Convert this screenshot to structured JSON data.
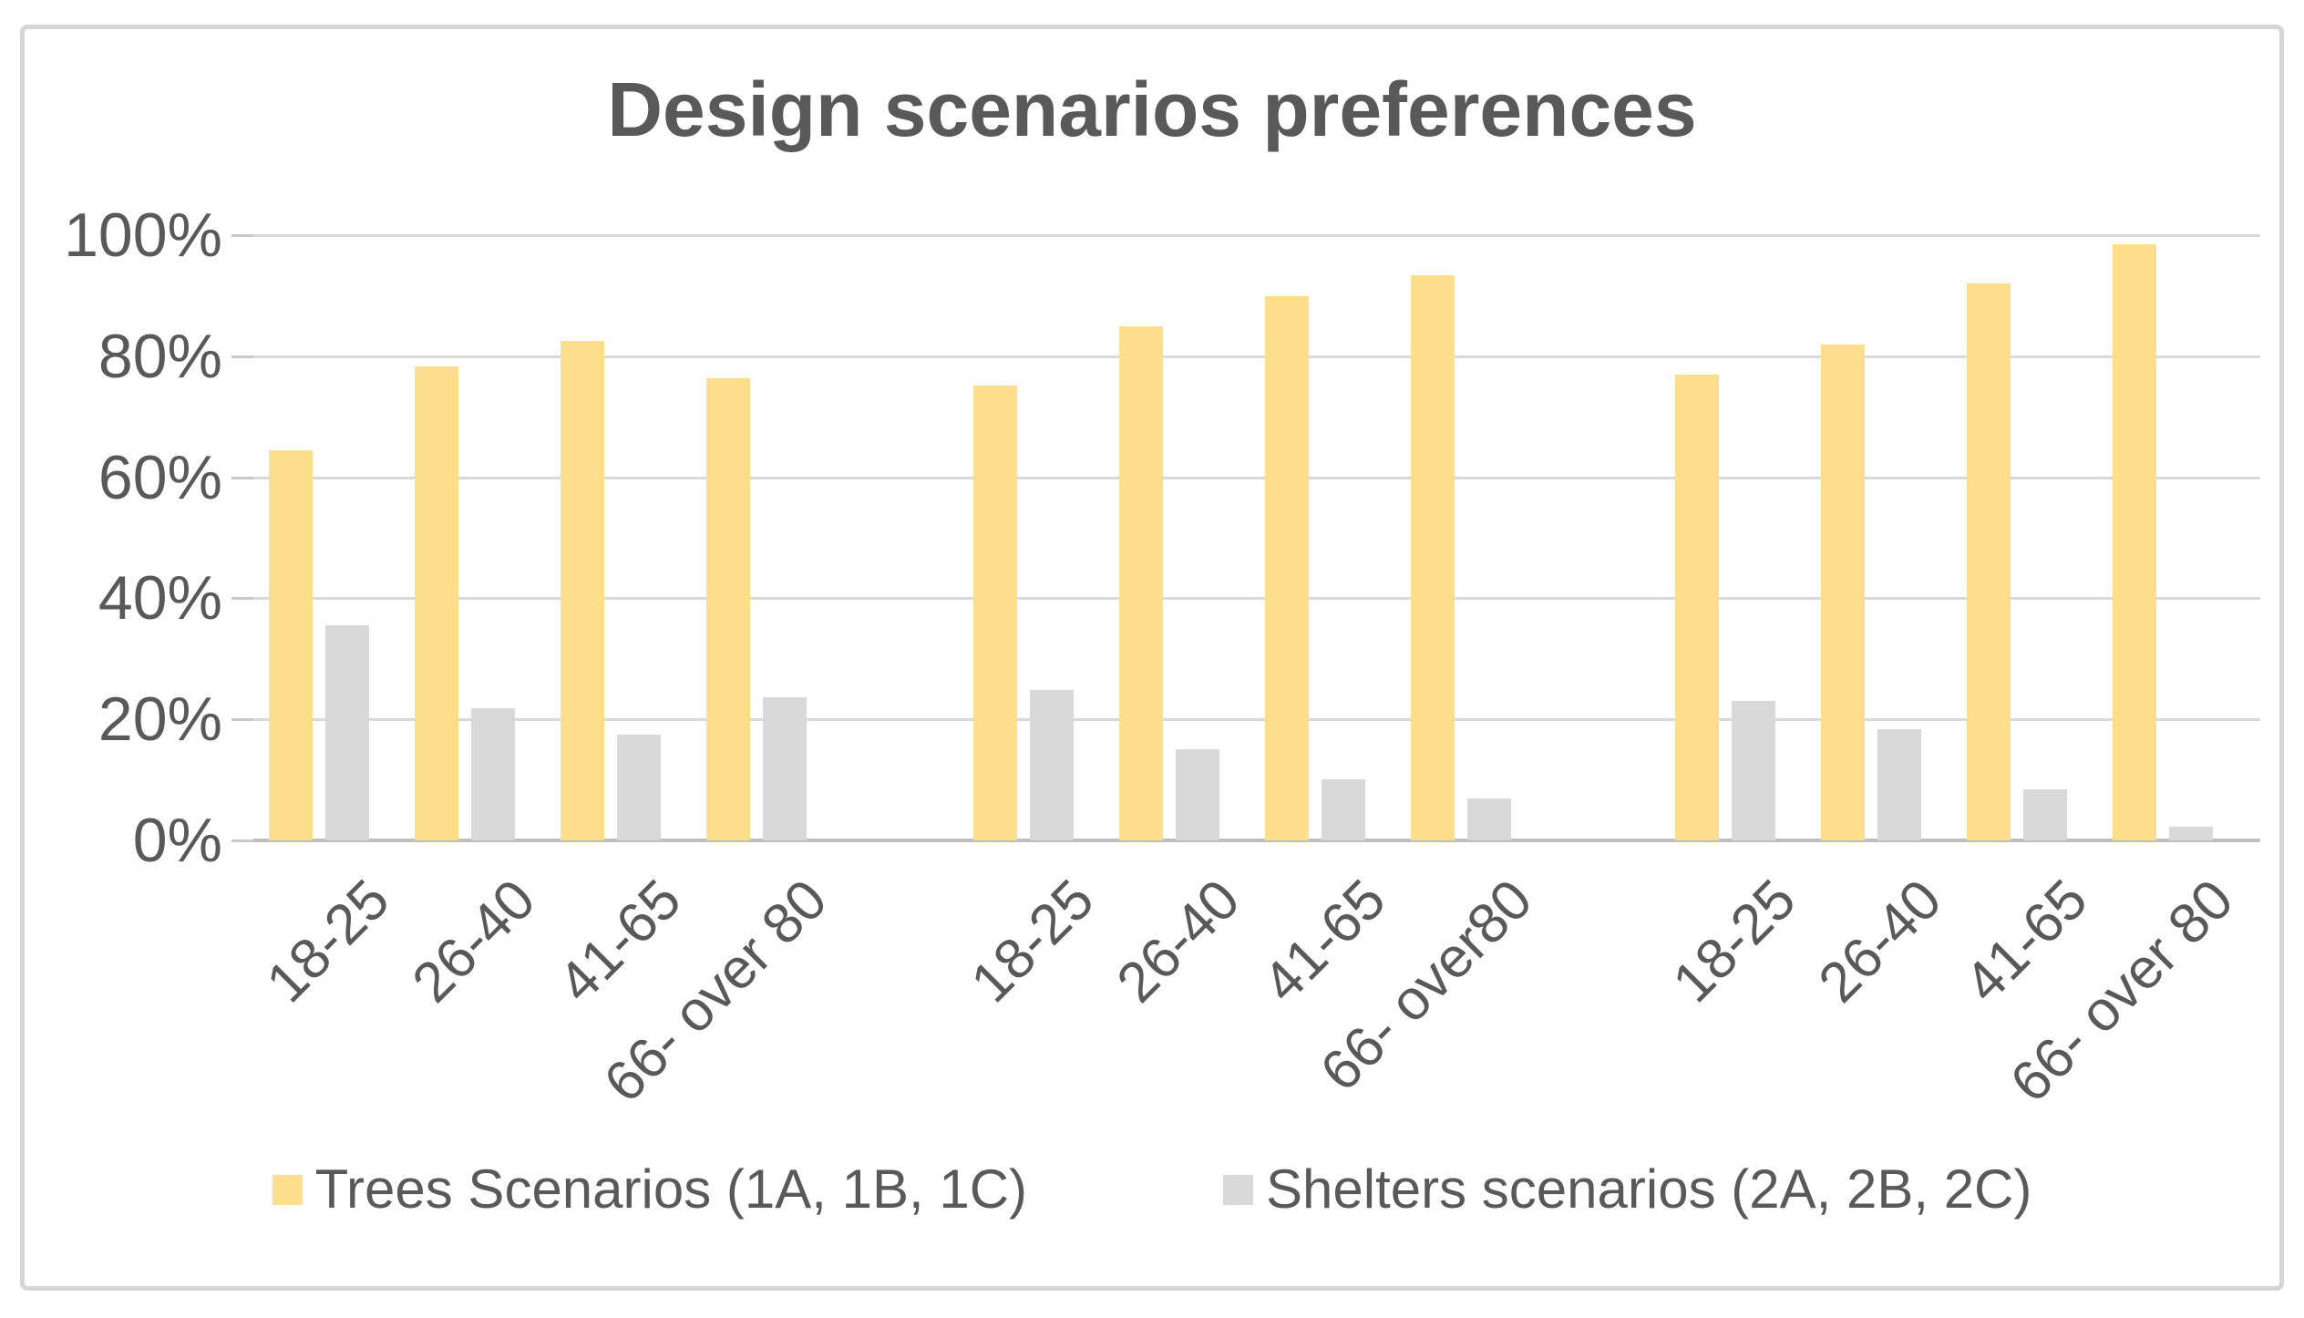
{
  "page": {
    "background": "#ffffff"
  },
  "chart": {
    "title": "Design scenarios preferences",
    "text_color": "#595959",
    "frame_border_color": "#d6d6d6",
    "gridline_color": "#d9d9d9",
    "baseline_color": "#bfbfbf"
  },
  "legend": {
    "items": [
      {
        "label": "Trees Scenarios (1A, 1B, 1C)",
        "color": "#fcde8c",
        "series": "trees"
      },
      {
        "label": "Shelters scenarios (2A, 2B, 2C)",
        "color": "#d9d9d9",
        "series": "shelters"
      }
    ]
  },
  "chart_data": {
    "type": "bar",
    "title": "Design scenarios preferences",
    "xlabel": "",
    "ylabel": "",
    "ylim": [
      0,
      100
    ],
    "y_tick_labels": [
      "100%",
      "80%",
      "60%",
      "40%",
      "20%",
      "0%"
    ],
    "y_tick_values": [
      100,
      80,
      60,
      40,
      20,
      0
    ],
    "grid": true,
    "legend_position": "bottom",
    "series_names": [
      "Trees Scenarios (1A, 1B, 1C)",
      "Shelters scenarios (2A, 2B, 2C)"
    ],
    "series_colors": [
      "#fcde8c",
      "#d9d9d9"
    ],
    "groups": [
      {
        "categories": [
          "18-25",
          "26-40",
          "41-65",
          "66- over 80"
        ],
        "series": [
          {
            "name": "Trees Scenarios (1A, 1B, 1C)",
            "values": [
              64.5,
              78.3,
              82.6,
              76.4
            ]
          },
          {
            "name": "Shelters scenarios (2A, 2B, 2C)",
            "values": [
              35.5,
              21.9,
              17.5,
              23.6
            ]
          }
        ]
      },
      {
        "categories": [
          "18-25",
          "26-40",
          "41-65",
          "66- over80"
        ],
        "series": [
          {
            "name": "Trees Scenarios (1A, 1B, 1C)",
            "values": [
              75.2,
              85.0,
              89.9,
              93.4
            ]
          },
          {
            "name": "Shelters scenarios (2A, 2B, 2C)",
            "values": [
              24.8,
              15.0,
              10.1,
              6.9
            ]
          }
        ]
      },
      {
        "categories": [
          "18-25",
          "26-40",
          "41-65",
          "66- over 80"
        ],
        "series": [
          {
            "name": "Trees Scenarios (1A, 1B, 1C)",
            "values": [
              77.0,
              81.9,
              92.0,
              98.5
            ]
          },
          {
            "name": "Shelters scenarios (2A, 2B, 2C)",
            "values": [
              23.1,
              18.4,
              8.5,
              2.2
            ]
          }
        ]
      }
    ]
  }
}
